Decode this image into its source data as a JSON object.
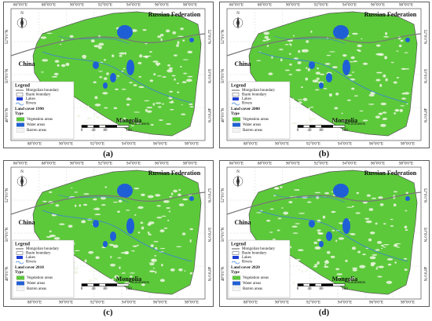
{
  "panels": [
    {
      "label": "(a)",
      "year_label": "Land cover 1990"
    },
    {
      "label": "(b)",
      "year_label": "Land cover 2000"
    },
    {
      "label": "(c)",
      "year_label": "Land cover 2010"
    },
    {
      "label": "(d)",
      "year_label": "Land cover 2020"
    }
  ],
  "map": {
    "top_lon": [
      "86°0'0\"E",
      "88°0'0\"E",
      "90°0'0\"E",
      "92°0'0\"E",
      "94°0'0\"E",
      "96°0'0\"E",
      "98°0'0\"E"
    ],
    "bottom_lon": [
      "88°0'0\"E",
      "90°0'0\"E",
      "92°0'0\"E",
      "94°0'0\"E",
      "96°0'0\"E",
      "98°0'0\"E"
    ],
    "lat": [
      "52°0'0\"N",
      "50°0'0\"N",
      "48°0'0\"N"
    ],
    "north": "N",
    "countries": {
      "russia": "Russian Federation",
      "china": "China",
      "mongolia": "Mongolia"
    },
    "legend": {
      "title": "Legend",
      "items": [
        "Mongolian boundary",
        "Basin boundary",
        "Lakes",
        "Rivers"
      ],
      "type_title": "Type",
      "types": [
        "Vegetation areas",
        "Water areas",
        "Barren areas"
      ]
    },
    "scale": {
      "ticks": [
        0,
        40,
        80,
        160
      ],
      "unit": "Kilometers"
    }
  }
}
